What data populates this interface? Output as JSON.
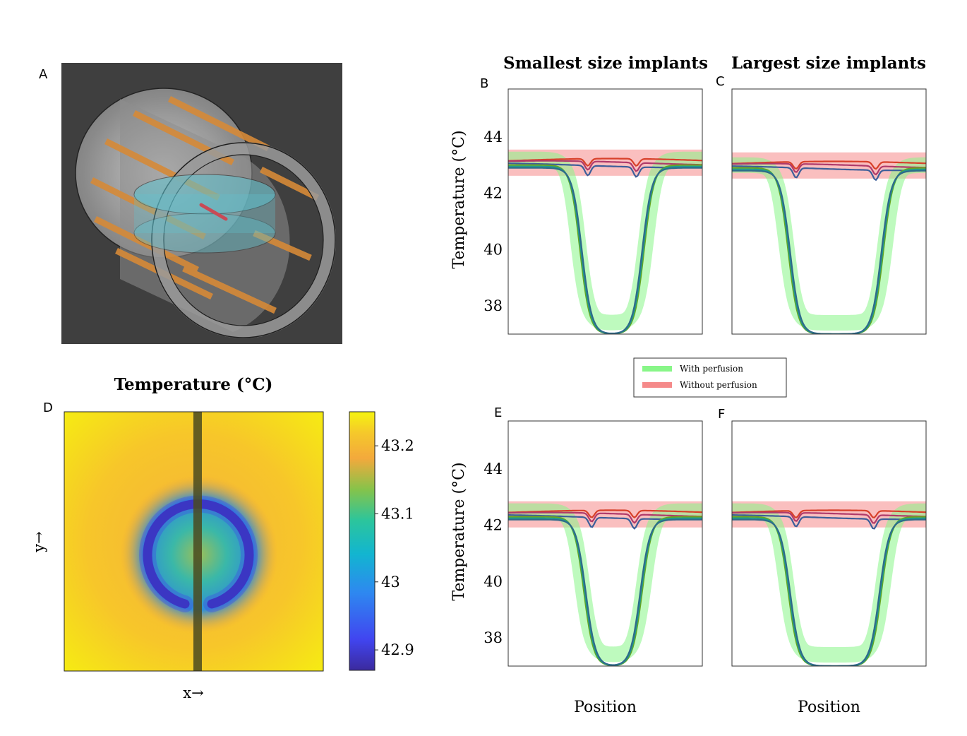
{
  "figure": {
    "panel_labels": {
      "a": "A",
      "b": "B",
      "c": "C",
      "d": "D",
      "e": "E",
      "f": "F"
    },
    "column_titles": {
      "left": "Smallest size implants",
      "right": "Largest size implants"
    },
    "heatmap_title": "Temperature (°C)",
    "heatmap_xlabel": "x→",
    "heatmap_ylabel": "y→"
  },
  "legend": {
    "with_label": "With perfusion",
    "without_label": "Without perfusion",
    "with_color": "#88f688",
    "without_color": "#f58a8a"
  },
  "chart_data": [
    {
      "id": "B",
      "type": "line",
      "title": "Smallest size implants",
      "xlabel": "",
      "ylabel": "Temperature (°C)",
      "ylim": [
        37,
        45.7
      ],
      "yticks": [
        38,
        40,
        42,
        44
      ],
      "band_without": [
        42.62,
        43.55
      ],
      "band_with_top": 43.2,
      "band_with_bottom": 37.4,
      "plateau": 43.0,
      "floor": 37.0,
      "trough_x": [
        0.41,
        0.66
      ],
      "well_x": [
        0.43,
        0.64
      ]
    },
    {
      "id": "C",
      "type": "line",
      "title": "Largest size implants",
      "xlabel": "",
      "ylabel": "",
      "ylim": [
        37,
        45.7
      ],
      "yticks": [
        38,
        40,
        42,
        44
      ],
      "band_without": [
        42.52,
        43.45
      ],
      "band_with_top": 43.0,
      "band_with_bottom": 37.4,
      "plateau": 42.9,
      "floor": 37.0,
      "trough_x": [
        0.33,
        0.74
      ],
      "well_x": [
        0.35,
        0.72
      ]
    },
    {
      "id": "E",
      "type": "line",
      "title": "",
      "xlabel": "Position",
      "ylabel": "Temperature (°C)",
      "ylim": [
        37,
        45.7
      ],
      "yticks": [
        38,
        40,
        42,
        44
      ],
      "band_without": [
        41.92,
        42.85
      ],
      "band_with_top": 42.5,
      "band_with_bottom": 37.4,
      "plateau": 42.3,
      "floor": 37.0,
      "trough_x": [
        0.43,
        0.65
      ],
      "well_x": [
        0.45,
        0.63
      ]
    },
    {
      "id": "F",
      "type": "line",
      "title": "",
      "xlabel": "Position",
      "ylabel": "",
      "ylim": [
        37,
        45.7
      ],
      "yticks": [
        38,
        40,
        42,
        44
      ],
      "band_without": [
        41.92,
        42.85
      ],
      "band_with_top": 42.5,
      "band_with_bottom": 37.4,
      "plateau": 42.3,
      "floor": 37.0,
      "trough_x": [
        0.33,
        0.73
      ],
      "well_x": [
        0.35,
        0.71
      ]
    }
  ],
  "colorbar": {
    "ticks": [
      42.9,
      43.0,
      43.1,
      43.2
    ],
    "tick_labels": [
      "42.9",
      "43",
      "43.1",
      "43.2"
    ],
    "range": [
      42.87,
      43.25
    ]
  }
}
